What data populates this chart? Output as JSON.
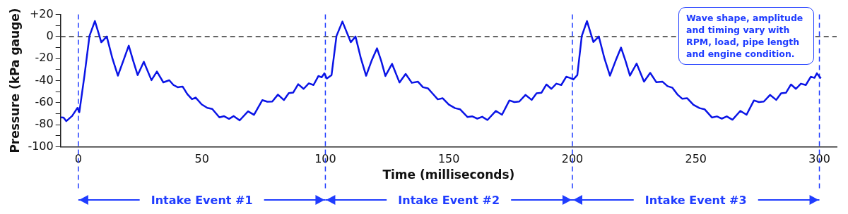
{
  "chart_data": {
    "type": "line",
    "xlabel": "Time (milliseconds)",
    "ylabel": "Pressure (kPa gauge)",
    "x": [
      -7.2,
      -6,
      -4.9,
      -2.5,
      -0.4,
      0.4,
      2.5,
      4.5,
      6.7,
      9.3,
      11.5,
      13.8,
      16,
      18.2,
      20.4,
      22.2,
      24,
      26.5,
      29.6,
      31.8,
      34.4,
      36.8,
      38.5,
      40.2,
      42.2,
      44.1,
      46,
      47.5,
      49.9,
      52.2,
      54.2,
      57.1,
      59,
      61,
      62.9,
      65.3,
      68.7,
      71.1,
      74.5,
      76.5,
      78.5,
      80.8,
      83.2,
      85.2,
      87,
      89,
      91.2,
      93.3,
      95.2,
      97.2,
      98.5,
      99.6,
      100.6,
      102.5,
      104.5,
      106.9,
      110.3,
      112.2,
      114.4,
      116.5,
      118.7,
      120.9,
      122.6,
      124.3,
      127,
      130,
      132.5,
      135,
      137.5,
      139.5,
      141.5,
      143.5,
      145.5,
      147.5,
      150,
      152.5,
      154.5,
      157.5,
      159.5,
      161.5,
      163.5,
      165.6,
      169,
      171.5,
      174.5,
      176.5,
      178.5,
      181,
      183.5,
      185.5,
      187.5,
      189.5,
      191.5,
      193.5,
      195.5,
      197.5,
      199,
      200.4,
      202,
      203.8,
      205.9,
      208.5,
      210.7,
      213,
      215.2,
      217.5,
      219.7,
      221.5,
      223.3,
      226,
      229,
      231.5,
      234,
      236.5,
      238.5,
      240.5,
      242.5,
      244.5,
      246.5,
      249,
      251.5,
      253.5,
      256.5,
      258.5,
      260.5,
      262.5,
      264.8,
      268,
      270.5,
      273.5,
      275.5,
      277.5,
      280,
      282.5,
      284.5,
      286.5,
      288.5,
      290.5,
      292.5,
      294.5,
      296.5,
      298,
      299,
      300.6
    ],
    "series": [
      {
        "color": "#0a14e6",
        "values": [
          -73.4,
          -73.5,
          -76.8,
          -72,
          -64.8,
          -68.7,
          -35,
          0.5,
          14.1,
          -5.2,
          0,
          -20,
          -35.5,
          -22,
          -8.3,
          -22,
          -35,
          -22.9,
          -39.6,
          -31.8,
          -41.6,
          -39.7,
          -44,
          -46,
          -45.4,
          -52.2,
          -56.9,
          -55.4,
          -61.6,
          -64.8,
          -65.7,
          -73.4,
          -72.3,
          -74.7,
          -72.2,
          -76.1,
          -67.9,
          -71.1,
          -57.7,
          -59.2,
          -59,
          -52.7,
          -57.7,
          -51.3,
          -50.8,
          -43.3,
          -47.5,
          -42.5,
          -44,
          -35.8,
          -37,
          -33.4,
          -38.1,
          -35,
          0.5,
          13.6,
          -5.2,
          0,
          -20,
          -35.6,
          -22,
          -10.7,
          -22,
          -35.8,
          -24.8,
          -41.7,
          -33.9,
          -42,
          -41,
          -46,
          -47,
          -52,
          -57,
          -56,
          -61.8,
          -65,
          -66,
          -73,
          -72.5,
          -74.5,
          -72.8,
          -75.8,
          -67.5,
          -71,
          -58,
          -59.5,
          -59,
          -53,
          -57.5,
          -51.5,
          -51,
          -43.5,
          -47.5,
          -42.8,
          -44,
          -36.5,
          -37.5,
          -39,
          -35,
          0.5,
          14,
          -5,
          0,
          -20,
          -35.5,
          -22,
          -10,
          -22,
          -35.5,
          -24.5,
          -41,
          -33,
          -41.5,
          -41,
          -45,
          -46.5,
          -52.5,
          -56.5,
          -56,
          -62,
          -65,
          -66,
          -73.5,
          -72.5,
          -74.5,
          -72.5,
          -75.5,
          -67.5,
          -71,
          -58,
          -59.5,
          -59,
          -53,
          -57.5,
          -51.5,
          -51,
          -43.5,
          -47.5,
          -42.8,
          -44,
          -36.5,
          -37.5,
          -33.4,
          -38
        ]
      }
    ],
    "xlim": [
      -7.2,
      307
    ],
    "xticks": [
      0,
      50,
      100,
      150,
      200,
      250,
      300
    ],
    "ylim": [
      -100,
      20
    ],
    "yticks": [
      {
        "value": 20,
        "label": "+20"
      },
      {
        "value": 10,
        "label": null
      },
      0,
      {
        "value": -10,
        "label": null
      },
      -20,
      {
        "value": -30,
        "label": null
      },
      -40,
      {
        "value": -50,
        "label": null
      },
      -60,
      {
        "value": -70,
        "label": null
      },
      -80,
      {
        "value": -90,
        "label": null
      },
      -100
    ],
    "ref_lines": [
      {
        "axis": "y",
        "value": 0,
        "color": "#333333",
        "line_style": "dashed"
      },
      {
        "axis": "x",
        "value": 0,
        "color": "#1f3cff",
        "line_style": "dashed"
      },
      {
        "axis": "x",
        "value": 100,
        "color": "#1f3cff",
        "line_style": "dashed"
      },
      {
        "axis": "x",
        "value": 200,
        "color": "#1f3cff",
        "line_style": "dashed"
      },
      {
        "axis": "x",
        "value": 300,
        "color": "#1f3cff",
        "line_style": "dashed"
      }
    ],
    "annotations": [
      "Wave shape, amplitude and timing vary with RPM, load, pipe length and engine condition.",
      "Intake Event #1",
      "Intake Event #2",
      "Intake Event #3"
    ]
  }
}
